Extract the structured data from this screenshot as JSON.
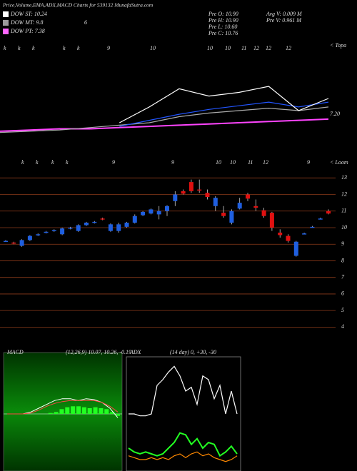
{
  "chart_data": [
    {
      "type": "info",
      "title": "Price,Volume,EMA,ADX,MACD Charts for 539132 MunafaSutra.com",
      "dow": [
        {
          "label": "DOW ST: 10.24",
          "color": "#ffffff"
        },
        {
          "label": "DOW MT: 9.8",
          "color": "#9a9a9a"
        },
        {
          "label": "DOW PT: 7.38",
          "color": "#ff66ff"
        }
      ],
      "dow_mt_extra": "6",
      "stats": [
        "Pre  O: 10.90",
        "Pre  H: 10.90",
        "Pre  L: 10.60",
        "Pre  C: 10.76",
        "Avg V: 0.009 M",
        "Pre  V: 0.961 M"
      ]
    },
    {
      "type": "line",
      "top_labels": [
        "k",
        "k",
        "k",
        "k",
        "k",
        "9",
        "10",
        "10",
        "10",
        "11",
        "12",
        "12",
        "12"
      ],
      "corner_label": "< Topa",
      "annotation": "7.20",
      "ylim": [
        6.8,
        7.8
      ],
      "series": [
        {
          "name": "EMA long",
          "color": "#ff44ff",
          "values": [
            7.13,
            7.14,
            7.15,
            7.15,
            7.16,
            7.17,
            7.18,
            7.19,
            7.2,
            7.21,
            7.22,
            7.23
          ]
        },
        {
          "name": "EMA mid",
          "color": "#aaaaaa",
          "values": [
            7.12,
            7.13,
            7.14,
            7.16,
            7.18,
            7.2,
            7.25,
            7.28,
            7.3,
            7.32,
            7.3,
            7.33
          ]
        },
        {
          "name": "EMA short",
          "color": "#2255ff",
          "values": [
            null,
            null,
            null,
            null,
            7.17,
            7.22,
            7.27,
            7.31,
            7.34,
            7.37,
            7.33,
            7.37
          ]
        },
        {
          "name": "Price",
          "color": "#ffffff",
          "values": [
            null,
            null,
            null,
            null,
            7.2,
            7.33,
            7.48,
            7.42,
            7.45,
            7.5,
            7.3,
            7.4
          ]
        }
      ]
    },
    {
      "type": "candlestick",
      "top_labels": [
        "k",
        "k",
        "k",
        "k",
        "9",
        "9",
        "10",
        "10",
        "11",
        "12",
        "9"
      ],
      "corner_label": "< Loom",
      "ylim": [
        3.5,
        13.4
      ],
      "yticks": [
        13,
        12,
        11,
        10,
        9,
        8,
        7,
        6,
        5,
        4
      ],
      "up_color": "#1f5fe0",
      "down_color": "#e01010",
      "ohlc": [
        [
          9.2,
          9.25,
          9.15,
          9.2
        ],
        [
          9.1,
          9.15,
          9.0,
          9.05
        ],
        [
          8.9,
          9.3,
          8.85,
          9.25
        ],
        [
          9.25,
          9.55,
          9.2,
          9.5
        ],
        [
          9.55,
          9.65,
          9.5,
          9.6
        ],
        [
          9.7,
          9.8,
          9.65,
          9.75
        ],
        [
          9.8,
          9.9,
          9.75,
          9.85
        ],
        [
          9.6,
          10.0,
          9.55,
          9.95
        ],
        [
          9.95,
          10.05,
          9.9,
          10.0
        ],
        [
          9.8,
          10.2,
          9.75,
          10.15
        ],
        [
          10.15,
          10.35,
          10.1,
          10.3
        ],
        [
          10.3,
          10.4,
          10.25,
          10.35
        ],
        [
          10.55,
          10.6,
          10.45,
          10.5
        ],
        [
          9.8,
          10.25,
          9.75,
          10.2
        ],
        [
          9.8,
          10.3,
          9.7,
          10.2
        ],
        [
          10.05,
          10.35,
          10.0,
          10.3
        ],
        [
          10.3,
          10.8,
          10.25,
          10.7
        ],
        [
          10.75,
          11.0,
          10.7,
          10.95
        ],
        [
          10.85,
          11.15,
          10.8,
          11.1
        ],
        [
          10.8,
          11.3,
          10.5,
          11.0
        ],
        [
          11.0,
          11.35,
          10.7,
          11.3
        ],
        [
          11.6,
          12.2,
          11.3,
          12.0
        ],
        [
          12.2,
          12.3,
          12.0,
          12.05
        ],
        [
          12.75,
          12.9,
          12.1,
          12.2
        ],
        [
          12.3,
          12.9,
          12.1,
          12.25
        ],
        [
          12.1,
          12.3,
          11.7,
          11.85
        ],
        [
          11.3,
          11.9,
          11.0,
          11.8
        ],
        [
          10.9,
          11.3,
          10.6,
          10.7
        ],
        [
          10.3,
          11.1,
          10.2,
          11.0
        ],
        [
          11.15,
          11.8,
          11.1,
          11.5
        ],
        [
          12.0,
          12.1,
          11.6,
          11.75
        ],
        [
          11.3,
          11.7,
          11.0,
          11.2
        ],
        [
          11.05,
          11.2,
          10.6,
          10.7
        ],
        [
          10.9,
          10.95,
          9.8,
          10.0
        ],
        [
          9.7,
          9.9,
          9.4,
          9.55
        ],
        [
          9.5,
          9.6,
          9.1,
          9.2
        ],
        [
          8.3,
          9.2,
          8.25,
          9.15
        ],
        [
          9.65,
          9.7,
          9.6,
          9.65
        ],
        [
          10.05,
          10.1,
          10.0,
          10.05
        ],
        [
          10.55,
          10.6,
          10.5,
          10.55
        ],
        [
          11.0,
          11.1,
          10.8,
          10.85
        ]
      ]
    },
    {
      "type": "macd",
      "title": "MACD",
      "params": "(12,26,9) 10.07, 10.26, -0.19",
      "ylim": [
        -3,
        3
      ],
      "histogram": {
        "color": "#22ff22",
        "values": [
          0,
          0,
          0.05,
          0.1,
          0.25,
          0.35,
          0.4,
          0.4,
          0.35,
          0.3,
          0.35,
          0.3,
          0.25,
          0.1,
          -0.1
        ]
      },
      "series": [
        {
          "name": "MACD",
          "color": "#ffffff",
          "values": [
            0,
            0,
            0,
            0.1,
            0.3,
            0.5,
            0.7,
            0.8,
            0.8,
            0.7,
            0.8,
            0.75,
            0.6,
            0.3,
            -0.2
          ]
        },
        {
          "name": "Signal",
          "color": "#ff4444",
          "values": [
            0,
            0,
            0,
            0.05,
            0.2,
            0.4,
            0.55,
            0.65,
            0.7,
            0.7,
            0.7,
            0.7,
            0.6,
            0.4,
            0.1
          ]
        }
      ]
    },
    {
      "type": "adx",
      "title": "ADX",
      "params": "(14 day) 0, +30, -30",
      "ylim": [
        0,
        60
      ],
      "series": [
        {
          "name": "ADX",
          "color": "#ffffff",
          "values": [
            30,
            30,
            29,
            29,
            30,
            45,
            48,
            52,
            55,
            50,
            42,
            44,
            35,
            50,
            48,
            38,
            45,
            30,
            42,
            30
          ]
        },
        {
          "name": "+DI",
          "color": "#22ff22",
          "values": [
            12,
            10,
            9,
            10,
            9,
            8,
            9,
            12,
            15,
            20,
            19,
            14,
            17,
            12,
            15,
            14,
            8,
            10,
            13,
            9
          ]
        },
        {
          "name": "-DI",
          "color": "#ff8800",
          "values": [
            8,
            7,
            6,
            6,
            7,
            6,
            7,
            6,
            8,
            9,
            7,
            9,
            10,
            8,
            9,
            7,
            6,
            5,
            6,
            8
          ]
        }
      ]
    }
  ]
}
